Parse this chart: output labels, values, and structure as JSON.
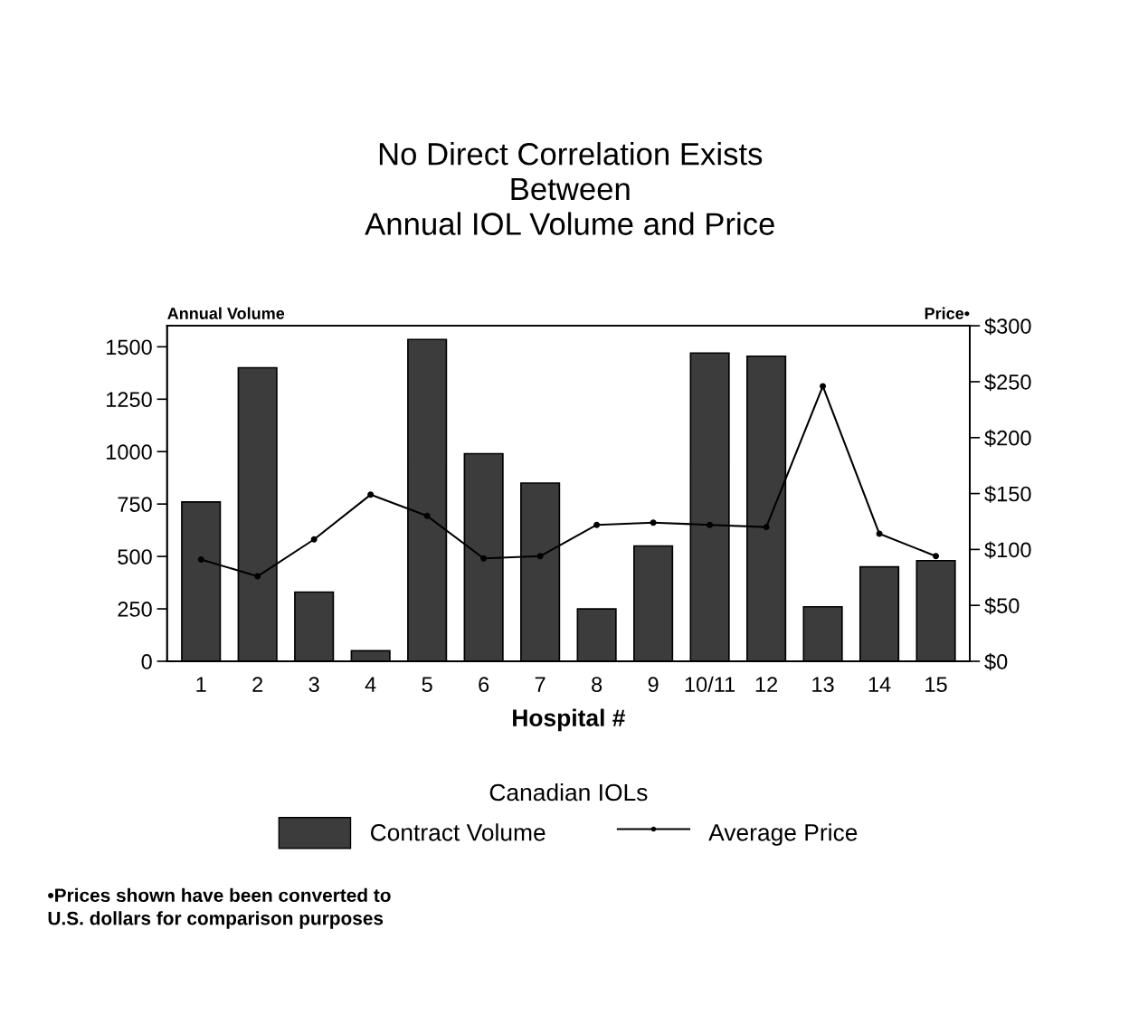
{
  "chart_data": {
    "type": "bar",
    "title": "No Direct Correlation Exists\nBetween\nAnnual IOL Volume and Price",
    "categories": [
      "1",
      "2",
      "3",
      "4",
      "5",
      "6",
      "7",
      "8",
      "9",
      "10/11",
      "12",
      "13",
      "14",
      "15"
    ],
    "series": [
      {
        "name": "Contract Volume",
        "color": "#3c3c3c",
        "values": [
          760,
          1400,
          330,
          50,
          1535,
          990,
          850,
          250,
          550,
          1470,
          1455,
          260,
          450,
          480
        ]
      },
      {
        "name": "Average Price",
        "type": "line",
        "axis": "y2",
        "color": "#000000",
        "values": [
          91,
          76,
          109,
          149,
          130,
          92,
          94,
          122,
          124,
          122,
          120,
          246,
          114,
          94
        ]
      }
    ],
    "xlabel": "Hospital #",
    "ylabel": "Annual Volume",
    "y2label": "Price•",
    "ylim": [
      0,
      1600
    ],
    "yticks": [
      0,
      250,
      500,
      750,
      1000,
      1250,
      1500
    ],
    "y2lim": [
      0,
      300
    ],
    "y2ticks": [
      {
        "value": 0,
        "label": "$0"
      },
      {
        "value": 50,
        "label": "$50"
      },
      {
        "value": 100,
        "label": "$100"
      },
      {
        "value": 150,
        "label": "$150"
      },
      {
        "value": 200,
        "label": "$200"
      },
      {
        "value": 250,
        "label": "$250"
      },
      {
        "value": 300,
        "label": "$300"
      }
    ],
    "legend": "bottom",
    "legend_title": "Canadian IOLs",
    "marker": "circle",
    "line_style": "solid",
    "grid": false,
    "annotations": [
      "•Prices shown have been converted to\nU.S. dollars for comparison purposes"
    ]
  }
}
